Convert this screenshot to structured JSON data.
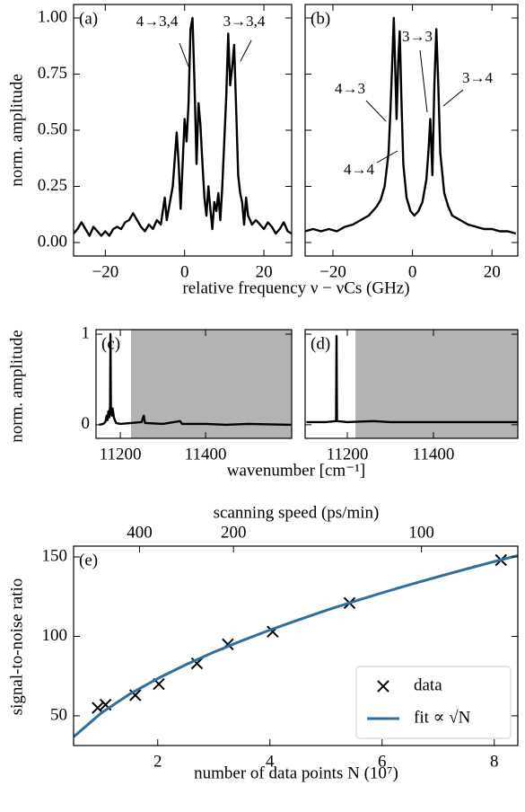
{
  "chart_data": [
    {
      "type": "line",
      "panel_label": "(a)",
      "ylabel": "norm. amplitude",
      "xlabel": "relative frequency ν − νCs (GHz)",
      "xlim": [
        -28,
        27
      ],
      "ylim": [
        -0.06,
        1.06
      ],
      "xticks": [
        {
          "value": -20,
          "label": "−20"
        },
        0,
        20
      ],
      "yticks": [
        {
          "value": 0,
          "label": "0.00"
        },
        {
          "value": 0.25,
          "label": "0.25"
        },
        {
          "value": 0.5,
          "label": "0.50"
        },
        {
          "value": 0.75,
          "label": "0.75"
        },
        {
          "value": 1,
          "label": "1.00"
        }
      ],
      "annotations": [
        {
          "text": "4→3,4"
        },
        {
          "text": "3→3,4"
        }
      ],
      "series": [
        {
          "color": "#000000",
          "x": [
            -28,
            -27,
            -26,
            -25,
            -24,
            -23,
            -22,
            -21,
            -20,
            -19,
            -18,
            -17,
            -16,
            -15,
            -14,
            -13,
            -12,
            -11,
            -10,
            -9,
            -8,
            -7,
            -6,
            -5,
            -4.5,
            -4,
            -3,
            -2,
            -1.5,
            -1,
            -0.5,
            0,
            0.5,
            1,
            1.5,
            2,
            2.5,
            3,
            3.5,
            4,
            4.5,
            5,
            5.5,
            6,
            6.5,
            7,
            7.5,
            8,
            8.5,
            9,
            9.5,
            10,
            10.5,
            11,
            11.5,
            12,
            12.5,
            13,
            13.5,
            14,
            14.5,
            15,
            15.5,
            16,
            17,
            18,
            19,
            20,
            21,
            22,
            23,
            24,
            25,
            26,
            27
          ],
          "values": [
            0.04,
            0.06,
            0.09,
            0.06,
            0.03,
            0.07,
            0.05,
            0.03,
            0.05,
            0.03,
            0.06,
            0.07,
            0.06,
            0.09,
            0.1,
            0.13,
            0.1,
            0.07,
            0.05,
            0.08,
            0.06,
            0.1,
            0.08,
            0.2,
            0.1,
            0.15,
            0.25,
            0.49,
            0.35,
            0.15,
            0.35,
            0.55,
            0.45,
            0.62,
            0.95,
            1.0,
            0.7,
            0.35,
            0.62,
            0.52,
            0.35,
            0.2,
            0.12,
            0.25,
            0.15,
            0.06,
            0.18,
            0.14,
            0.22,
            0.1,
            0.25,
            0.45,
            0.65,
            0.93,
            0.7,
            0.78,
            0.88,
            0.6,
            0.3,
            0.22,
            0.18,
            0.08,
            0.2,
            0.12,
            0.08,
            0.1,
            0.08,
            0.06,
            0.09,
            0.07,
            0.04,
            0.06,
            0.09,
            0.05,
            0.04
          ]
        }
      ]
    },
    {
      "type": "line",
      "panel_label": "(b)",
      "xlim": [
        -27,
        26.5
      ],
      "ylim": [
        -0.06,
        1.06
      ],
      "xticks": [
        {
          "value": -20,
          "label": "−20"
        },
        0,
        20
      ],
      "annotations": [
        {
          "text": "4→3"
        },
        {
          "text": "3→3"
        },
        {
          "text": "3→4"
        },
        {
          "text": "4→4"
        }
      ],
      "series": [
        {
          "color": "#000000",
          "x": [
            -27,
            -25,
            -23,
            -21,
            -19,
            -17,
            -15,
            -13,
            -11,
            -9,
            -8,
            -7,
            -6,
            -5.5,
            -5,
            -4.7,
            -4.3,
            -4,
            -3.6,
            -3.2,
            -2.8,
            -2.3,
            -1.5,
            -0.5,
            0.5,
            1.5,
            2.5,
            3.5,
            4,
            4.5,
            5,
            5.5,
            6,
            6.5,
            7,
            8,
            9,
            10,
            12,
            14,
            16,
            18,
            20,
            22,
            24,
            26
          ],
          "values": [
            0.05,
            0.06,
            0.05,
            0.06,
            0.05,
            0.07,
            0.08,
            0.1,
            0.12,
            0.16,
            0.19,
            0.25,
            0.4,
            0.6,
            0.85,
            1.0,
            0.75,
            0.55,
            0.8,
            0.94,
            0.65,
            0.35,
            0.2,
            0.14,
            0.12,
            0.14,
            0.18,
            0.28,
            0.4,
            0.55,
            0.3,
            0.7,
            0.95,
            0.7,
            0.4,
            0.22,
            0.16,
            0.12,
            0.1,
            0.08,
            0.07,
            0.06,
            0.06,
            0.05,
            0.05,
            0.04
          ]
        }
      ]
    },
    {
      "type": "line",
      "panel_label": "(c)",
      "ylabel": "norm. amplitude",
      "xlabel": "wavenumber [cm⁻¹]",
      "xlim": [
        11143,
        11602
      ],
      "ylim": [
        -0.15,
        1.05
      ],
      "xticks": [
        11200,
        11400
      ],
      "yticks": [
        0,
        1
      ],
      "span": [
        11225,
        11602
      ],
      "series": [
        {
          "color": "#000000",
          "x": [
            11150,
            11160,
            11165,
            11168,
            11170,
            11172,
            11174,
            11176,
            11177,
            11178,
            11180,
            11182,
            11185,
            11190,
            11200,
            11250,
            11255,
            11258,
            11300,
            11340,
            11345,
            11400,
            11450,
            11500,
            11600
          ],
          "values": [
            0,
            0.01,
            0.03,
            0.1,
            0.05,
            0.15,
            0.08,
            0.2,
            1.0,
            0.15,
            0.1,
            0.18,
            0.08,
            0.02,
            0.01,
            0.03,
            0.1,
            0.02,
            0.01,
            0.04,
            0.01,
            0.01,
            0,
            0.01,
            0
          ]
        }
      ]
    },
    {
      "type": "line",
      "panel_label": "(d)",
      "xlim": [
        11102,
        11596
      ],
      "ylim": [
        -0.15,
        1.05
      ],
      "xticks": [
        11200,
        11400
      ],
      "span": [
        11219,
        11596
      ],
      "series": [
        {
          "color": "#000000",
          "x": [
            11105,
            11150,
            11174,
            11175,
            11176,
            11200,
            11260,
            11300,
            11400,
            11500,
            11595
          ],
          "values": [
            0.03,
            0.03,
            0.04,
            0.98,
            0.04,
            0.03,
            0.04,
            0.03,
            0.03,
            0.03,
            0.03
          ]
        }
      ]
    },
    {
      "type": "scatter",
      "panel_label": "(e)",
      "ylabel": "signal-to-noise ratio",
      "xlabel": "number of data points N (10⁷)",
      "x2label": "scanning speed (ps/min)",
      "x2scale": "reciprocal",
      "x2lim": [
        1340,
        79.6
      ],
      "x2ticks": [
        400,
        200,
        100
      ],
      "xlim": [
        0.5,
        8.42
      ],
      "ylim": [
        31.3,
        156.8
      ],
      "xticks": [
        2,
        4,
        6,
        8
      ],
      "yticks": [
        50,
        100,
        150
      ],
      "legend": "lower right",
      "series": [
        {
          "name": "data",
          "type": "scatter",
          "color": "#000000",
          "x": [
            0.93,
            1.07,
            1.6,
            2.02,
            2.7,
            3.25,
            4.05,
            5.42,
            8.12
          ],
          "values": [
            55,
            57,
            63,
            70,
            83,
            95,
            103,
            121,
            148
          ]
        },
        {
          "name": "fit ∝ √N",
          "type": "line",
          "color": "#2e6f9e",
          "x": [
            0.5,
            1,
            1.5,
            2,
            2.5,
            3,
            3.5,
            4,
            4.5,
            5,
            5.5,
            6,
            6.5,
            7,
            7.5,
            8,
            8.42
          ],
          "values": [
            36.8,
            52,
            63.7,
            73.5,
            82.2,
            90.1,
            97.3,
            104,
            110.3,
            116.3,
            122,
            127.4,
            132.6,
            137.6,
            142.4,
            147.1,
            150.9
          ]
        }
      ]
    }
  ]
}
